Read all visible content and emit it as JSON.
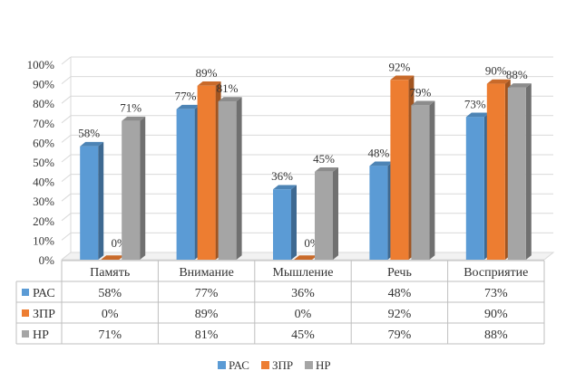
{
  "chart_data": {
    "type": "bar",
    "style": "3d-clustered-column-with-data-table",
    "categories": [
      "Память",
      "Внимание",
      "Мышление",
      "Речь",
      "Восприятие"
    ],
    "series": [
      {
        "name": "РАС",
        "color": "#5B9BD5",
        "values": [
          58,
          77,
          36,
          48,
          73
        ],
        "labels": [
          "58%",
          "77%",
          "36%",
          "48%",
          "73%"
        ]
      },
      {
        "name": "ЗПР",
        "color": "#ED7D31",
        "values": [
          0,
          89,
          0,
          92,
          90
        ],
        "labels": [
          "0%",
          "89%",
          "0%",
          "92%",
          "90%"
        ]
      },
      {
        "name": "НР",
        "color": "#A5A5A5",
        "values": [
          71,
          81,
          45,
          79,
          88
        ],
        "labels": [
          "71%",
          "81%",
          "45%",
          "79%",
          "88%"
        ]
      }
    ],
    "ylim": [
      0,
      100
    ],
    "y_ticks": [
      "0%",
      "10%",
      "20%",
      "30%",
      "40%",
      "50%",
      "60%",
      "70%",
      "80%",
      "90%",
      "100%"
    ],
    "grid": true,
    "legend": "bottom",
    "title": "",
    "xlabel": "",
    "ylabel": ""
  }
}
